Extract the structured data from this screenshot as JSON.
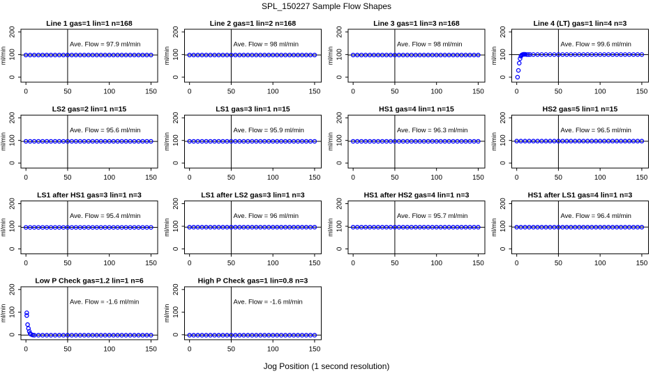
{
  "title": "SPL_150227  Sample Flow Shapes",
  "xlabel": "Jog Position (1 second resolution)",
  "chart_data": [
    {
      "type": "scatter",
      "title": "Line 1 gas=1 lin=1 n=168",
      "ylabel": "ml/min",
      "annotation": "Ave. Flow = 97.9  ml/min",
      "mean": 97.9,
      "vline": 50,
      "color": "#0000ff",
      "xlim": [
        -6,
        158
      ],
      "ylim": [
        -22,
        212
      ],
      "xticks": [
        0,
        50,
        100,
        150
      ],
      "yticks": [
        0,
        100,
        200
      ],
      "x": [
        0,
        5,
        10,
        15,
        20,
        25,
        30,
        35,
        40,
        45,
        50,
        55,
        60,
        65,
        70,
        75,
        80,
        85,
        90,
        95,
        100,
        105,
        110,
        115,
        120,
        125,
        130,
        135,
        140,
        145,
        150
      ],
      "values": [
        98,
        98,
        98,
        98,
        98,
        98,
        98,
        98,
        98,
        98,
        98,
        98,
        98,
        98,
        98,
        98,
        98,
        98,
        98,
        98,
        98,
        98,
        98,
        98,
        98,
        98,
        98,
        98,
        98,
        98,
        98
      ]
    },
    {
      "type": "scatter",
      "title": "Line 2 gas=1 lin=2 n=168",
      "ylabel": "ml/min",
      "annotation": "Ave. Flow = 98  ml/min",
      "mean": 98,
      "vline": 50,
      "color": "#0000ff",
      "xlim": [
        -6,
        158
      ],
      "ylim": [
        -22,
        212
      ],
      "xticks": [
        0,
        50,
        100,
        150
      ],
      "yticks": [
        0,
        100,
        200
      ],
      "x": [
        0,
        5,
        10,
        15,
        20,
        25,
        30,
        35,
        40,
        45,
        50,
        55,
        60,
        65,
        70,
        75,
        80,
        85,
        90,
        95,
        100,
        105,
        110,
        115,
        120,
        125,
        130,
        135,
        140,
        145,
        150
      ],
      "values": [
        98,
        98,
        98,
        98,
        98,
        98,
        98,
        98,
        98,
        98,
        98,
        98,
        98,
        98,
        98,
        98,
        98,
        98,
        98,
        98,
        98,
        98,
        98,
        98,
        98,
        98,
        98,
        98,
        98,
        98,
        98
      ]
    },
    {
      "type": "scatter",
      "title": "Line 3 gas=1 lin=3 n=168",
      "ylabel": "ml/min",
      "annotation": "Ave. Flow = 98  ml/min",
      "mean": 98,
      "vline": 50,
      "color": "#0000ff",
      "xlim": [
        -6,
        158
      ],
      "ylim": [
        -22,
        212
      ],
      "xticks": [
        0,
        50,
        100,
        150
      ],
      "yticks": [
        0,
        100,
        200
      ],
      "x": [
        0,
        5,
        10,
        15,
        20,
        25,
        30,
        35,
        40,
        45,
        50,
        55,
        60,
        65,
        70,
        75,
        80,
        85,
        90,
        95,
        100,
        105,
        110,
        115,
        120,
        125,
        130,
        135,
        140,
        145,
        150
      ],
      "values": [
        98,
        98,
        98,
        98,
        98,
        98,
        98,
        98,
        98,
        98,
        98,
        98,
        98,
        98,
        98,
        98,
        98,
        98,
        98,
        98,
        98,
        98,
        98,
        98,
        98,
        98,
        98,
        98,
        98,
        98,
        98
      ]
    },
    {
      "type": "scatter",
      "title": "Line 4 (LT) gas=1 lin=4 n=3",
      "ylabel": "ml/min",
      "annotation": "Ave. Flow = 99.6  ml/min",
      "mean": 99.6,
      "vline": 50,
      "color": "#0000ff",
      "xlim": [
        -6,
        158
      ],
      "ylim": [
        -22,
        212
      ],
      "xticks": [
        0,
        50,
        100,
        150
      ],
      "yticks": [
        0,
        100,
        200
      ],
      "x": [
        1,
        2,
        3,
        4,
        5,
        6,
        7,
        8,
        9,
        10,
        12,
        14,
        16,
        20,
        25,
        30,
        35,
        40,
        45,
        50,
        55,
        60,
        65,
        70,
        75,
        80,
        85,
        90,
        95,
        100,
        105,
        110,
        115,
        120,
        125,
        130,
        135,
        140,
        145,
        150
      ],
      "values": [
        0,
        30,
        62,
        82,
        93,
        98,
        100,
        101,
        101,
        101,
        100,
        100,
        100,
        100,
        100,
        100,
        100,
        100,
        100,
        100,
        100,
        100,
        100,
        100,
        100,
        100,
        100,
        100,
        100,
        100,
        100,
        100,
        100,
        100,
        100,
        100,
        100,
        100,
        100,
        100
      ]
    },
    {
      "type": "scatter",
      "title": "LS2 gas=2 lin=1 n=15",
      "ylabel": "ml/min",
      "annotation": "Ave. Flow = 95.6  ml/min",
      "mean": 95.6,
      "vline": 50,
      "color": "#0000ff",
      "xlim": [
        -6,
        158
      ],
      "ylim": [
        -22,
        212
      ],
      "xticks": [
        0,
        50,
        100,
        150
      ],
      "yticks": [
        0,
        100,
        200
      ],
      "x": [
        0,
        5,
        10,
        15,
        20,
        25,
        30,
        35,
        40,
        45,
        50,
        55,
        60,
        65,
        70,
        75,
        80,
        85,
        90,
        95,
        100,
        105,
        110,
        115,
        120,
        125,
        130,
        135,
        140,
        145,
        150
      ],
      "values": [
        96,
        96,
        96,
        96,
        96,
        96,
        96,
        96,
        96,
        96,
        96,
        96,
        96,
        96,
        96,
        96,
        96,
        96,
        96,
        96,
        96,
        96,
        96,
        96,
        96,
        96,
        96,
        96,
        96,
        96,
        96
      ]
    },
    {
      "type": "scatter",
      "title": "LS1 gas=3 lin=1 n=15",
      "ylabel": "ml/min",
      "annotation": "Ave. Flow = 95.9  ml/min",
      "mean": 95.9,
      "vline": 50,
      "color": "#0000ff",
      "xlim": [
        -6,
        158
      ],
      "ylim": [
        -22,
        212
      ],
      "xticks": [
        0,
        50,
        100,
        150
      ],
      "yticks": [
        0,
        100,
        200
      ],
      "x": [
        0,
        5,
        10,
        15,
        20,
        25,
        30,
        35,
        40,
        45,
        50,
        55,
        60,
        65,
        70,
        75,
        80,
        85,
        90,
        95,
        100,
        105,
        110,
        115,
        120,
        125,
        130,
        135,
        140,
        145,
        150
      ],
      "values": [
        96,
        96,
        96,
        96,
        96,
        96,
        96,
        96,
        96,
        96,
        96,
        96,
        96,
        96,
        96,
        96,
        96,
        96,
        96,
        96,
        96,
        96,
        96,
        96,
        96,
        96,
        96,
        96,
        96,
        96,
        96
      ]
    },
    {
      "type": "scatter",
      "title": "HS1 gas=4 lin=1 n=15",
      "ylabel": "ml/min",
      "annotation": "Ave. Flow = 96.3  ml/min",
      "mean": 96.3,
      "vline": 50,
      "color": "#0000ff",
      "xlim": [
        -6,
        158
      ],
      "ylim": [
        -22,
        212
      ],
      "xticks": [
        0,
        50,
        100,
        150
      ],
      "yticks": [
        0,
        100,
        200
      ],
      "x": [
        0,
        5,
        10,
        15,
        20,
        25,
        30,
        35,
        40,
        45,
        50,
        55,
        60,
        65,
        70,
        75,
        80,
        85,
        90,
        95,
        100,
        105,
        110,
        115,
        120,
        125,
        130,
        135,
        140,
        145,
        150
      ],
      "values": [
        96,
        96,
        96,
        96,
        96,
        96,
        96,
        96,
        96,
        96,
        96,
        96,
        96,
        96,
        96,
        96,
        96,
        96,
        96,
        96,
        96,
        96,
        96,
        96,
        96,
        96,
        96,
        96,
        96,
        96,
        96
      ]
    },
    {
      "type": "scatter",
      "title": "HS2 gas=5 lin=1 n=15",
      "ylabel": "ml/min",
      "annotation": "Ave. Flow = 96.5  ml/min",
      "mean": 96.5,
      "vline": 50,
      "color": "#0000ff",
      "xlim": [
        -6,
        158
      ],
      "ylim": [
        -22,
        212
      ],
      "xticks": [
        0,
        50,
        100,
        150
      ],
      "yticks": [
        0,
        100,
        200
      ],
      "x": [
        0,
        5,
        10,
        15,
        20,
        25,
        30,
        35,
        40,
        45,
        50,
        55,
        60,
        65,
        70,
        75,
        80,
        85,
        90,
        95,
        100,
        105,
        110,
        115,
        120,
        125,
        130,
        135,
        140,
        145,
        150
      ],
      "values": [
        97,
        97,
        97,
        97,
        97,
        97,
        97,
        97,
        97,
        97,
        97,
        97,
        97,
        97,
        97,
        97,
        97,
        97,
        97,
        97,
        97,
        97,
        97,
        97,
        97,
        97,
        97,
        97,
        97,
        97,
        97
      ]
    },
    {
      "type": "scatter",
      "title": "LS1 after HS1 gas=3 lin=1 n=3",
      "ylabel": "ml/min",
      "annotation": "Ave. Flow = 95.4  ml/min",
      "mean": 95.4,
      "vline": 50,
      "color": "#0000ff",
      "xlim": [
        -6,
        158
      ],
      "ylim": [
        -22,
        212
      ],
      "xticks": [
        0,
        50,
        100,
        150
      ],
      "yticks": [
        0,
        100,
        200
      ],
      "x": [
        0,
        5,
        10,
        15,
        20,
        25,
        30,
        35,
        40,
        45,
        50,
        55,
        60,
        65,
        70,
        75,
        80,
        85,
        90,
        95,
        100,
        105,
        110,
        115,
        120,
        125,
        130,
        135,
        140,
        145,
        150
      ],
      "values": [
        95,
        95,
        95,
        95,
        95,
        95,
        95,
        95,
        95,
        95,
        95,
        95,
        95,
        95,
        95,
        95,
        95,
        95,
        95,
        95,
        95,
        95,
        95,
        95,
        95,
        95,
        95,
        95,
        95,
        95,
        95
      ]
    },
    {
      "type": "scatter",
      "title": "LS1 after LS2 gas=3 lin=1 n=3",
      "ylabel": "ml/min",
      "annotation": "Ave. Flow = 96  ml/min",
      "mean": 96,
      "vline": 50,
      "color": "#0000ff",
      "xlim": [
        -6,
        158
      ],
      "ylim": [
        -22,
        212
      ],
      "xticks": [
        0,
        50,
        100,
        150
      ],
      "yticks": [
        0,
        100,
        200
      ],
      "x": [
        0,
        5,
        10,
        15,
        20,
        25,
        30,
        35,
        40,
        45,
        50,
        55,
        60,
        65,
        70,
        75,
        80,
        85,
        90,
        95,
        100,
        105,
        110,
        115,
        120,
        125,
        130,
        135,
        140,
        145,
        150
      ],
      "values": [
        96,
        96,
        96,
        96,
        96,
        96,
        96,
        96,
        96,
        96,
        96,
        96,
        96,
        96,
        96,
        96,
        96,
        96,
        96,
        96,
        96,
        96,
        96,
        96,
        96,
        96,
        96,
        96,
        96,
        96,
        96
      ]
    },
    {
      "type": "scatter",
      "title": "HS1 after HS2 gas=4 lin=1 n=3",
      "ylabel": "ml/min",
      "annotation": "Ave. Flow = 95.7  ml/min",
      "mean": 95.7,
      "vline": 50,
      "color": "#0000ff",
      "xlim": [
        -6,
        158
      ],
      "ylim": [
        -22,
        212
      ],
      "xticks": [
        0,
        50,
        100,
        150
      ],
      "yticks": [
        0,
        100,
        200
      ],
      "x": [
        0,
        5,
        10,
        15,
        20,
        25,
        30,
        35,
        40,
        45,
        50,
        55,
        60,
        65,
        70,
        75,
        80,
        85,
        90,
        95,
        100,
        105,
        110,
        115,
        120,
        125,
        130,
        135,
        140,
        145,
        150
      ],
      "values": [
        96,
        96,
        96,
        96,
        96,
        96,
        96,
        96,
        96,
        96,
        96,
        96,
        96,
        96,
        96,
        96,
        96,
        96,
        96,
        96,
        96,
        96,
        96,
        96,
        96,
        96,
        96,
        96,
        96,
        96,
        96
      ]
    },
    {
      "type": "scatter",
      "title": "HS1 after LS1 gas=4 lin=1 n=3",
      "ylabel": "ml/min",
      "annotation": "Ave. Flow = 96.4  ml/min",
      "mean": 96.4,
      "vline": 50,
      "color": "#0000ff",
      "xlim": [
        -6,
        158
      ],
      "ylim": [
        -22,
        212
      ],
      "xticks": [
        0,
        50,
        100,
        150
      ],
      "yticks": [
        0,
        100,
        200
      ],
      "x": [
        0,
        5,
        10,
        15,
        20,
        25,
        30,
        35,
        40,
        45,
        50,
        55,
        60,
        65,
        70,
        75,
        80,
        85,
        90,
        95,
        100,
        105,
        110,
        115,
        120,
        125,
        130,
        135,
        140,
        145,
        150
      ],
      "values": [
        96,
        96,
        96,
        96,
        96,
        96,
        96,
        96,
        96,
        96,
        96,
        96,
        96,
        96,
        96,
        96,
        96,
        96,
        96,
        96,
        96,
        96,
        96,
        96,
        96,
        96,
        96,
        96,
        96,
        96,
        96
      ]
    },
    {
      "type": "scatter",
      "title": "Low P Check gas=1.2 lin=1 n=6",
      "ylabel": "ml/min",
      "annotation": "Ave. Flow = -1.6  ml/min",
      "mean": -1.6,
      "vline": 50,
      "color": "#0000ff",
      "xlim": [
        -6,
        158
      ],
      "ylim": [
        -22,
        212
      ],
      "xticks": [
        0,
        50,
        100,
        150
      ],
      "yticks": [
        0,
        100,
        200
      ],
      "x": [
        1,
        1,
        2,
        3,
        4,
        5,
        6,
        8,
        10,
        15,
        20,
        25,
        30,
        35,
        40,
        45,
        50,
        55,
        60,
        65,
        70,
        75,
        80,
        85,
        90,
        95,
        100,
        105,
        110,
        115,
        120,
        125,
        130,
        135,
        140,
        145,
        150
      ],
      "values": [
        97,
        85,
        45,
        28,
        15,
        6,
        2,
        -1,
        -2,
        -2,
        -2,
        -2,
        -2,
        -2,
        -2,
        -2,
        -2,
        -2,
        -2,
        -2,
        -2,
        -2,
        -2,
        -2,
        -2,
        -2,
        -2,
        -2,
        -2,
        -2,
        -2,
        -2,
        -2,
        -2,
        -2,
        -2,
        -2
      ]
    },
    {
      "type": "scatter",
      "title": "High P Check gas=1 lin=0.8 n=3",
      "ylabel": "ml/min",
      "annotation": "Ave. Flow = -1.6  ml/min",
      "mean": -1.6,
      "vline": 50,
      "color": "#0000ff",
      "xlim": [
        -6,
        158
      ],
      "ylim": [
        -22,
        212
      ],
      "xticks": [
        0,
        50,
        100,
        150
      ],
      "yticks": [
        0,
        100,
        200
      ],
      "x": [
        0,
        5,
        10,
        15,
        20,
        25,
        30,
        35,
        40,
        45,
        50,
        55,
        60,
        65,
        70,
        75,
        80,
        85,
        90,
        95,
        100,
        105,
        110,
        115,
        120,
        125,
        130,
        135,
        140,
        145,
        150
      ],
      "values": [
        -2,
        -2,
        -2,
        -2,
        -2,
        -2,
        -2,
        -2,
        -2,
        -2,
        -2,
        -2,
        -2,
        -2,
        -2,
        -2,
        -2,
        -2,
        -2,
        -2,
        -2,
        -2,
        -2,
        -2,
        -2,
        -2,
        -2,
        -2,
        -2,
        -2,
        -2
      ]
    }
  ]
}
